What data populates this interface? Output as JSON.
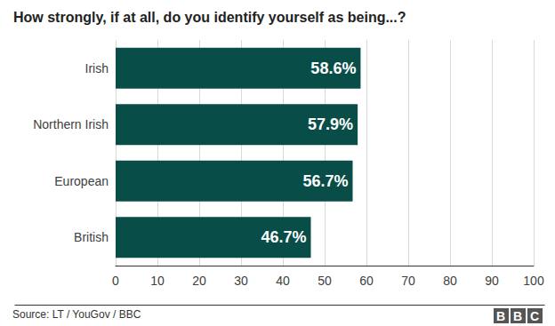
{
  "chart_data": {
    "type": "bar",
    "title": "How strongly, if at all, do you identify yourself as being...?",
    "categories": [
      "Irish",
      "Northern Irish",
      "European",
      "British"
    ],
    "values": [
      58.6,
      57.9,
      56.7,
      46.7
    ],
    "value_labels": [
      "58.6%",
      "57.9%",
      "56.7%",
      "46.7%"
    ],
    "color": "#084d48",
    "orientation": "horizontal",
    "data_labels": true,
    "xlim": [
      0,
      100
    ],
    "xticks": [
      0,
      10,
      20,
      30,
      40,
      50,
      60,
      70,
      80,
      90,
      100
    ],
    "grid": true,
    "annotations": [
      "Source: LT / YouGov / BBC",
      "BBC"
    ]
  }
}
